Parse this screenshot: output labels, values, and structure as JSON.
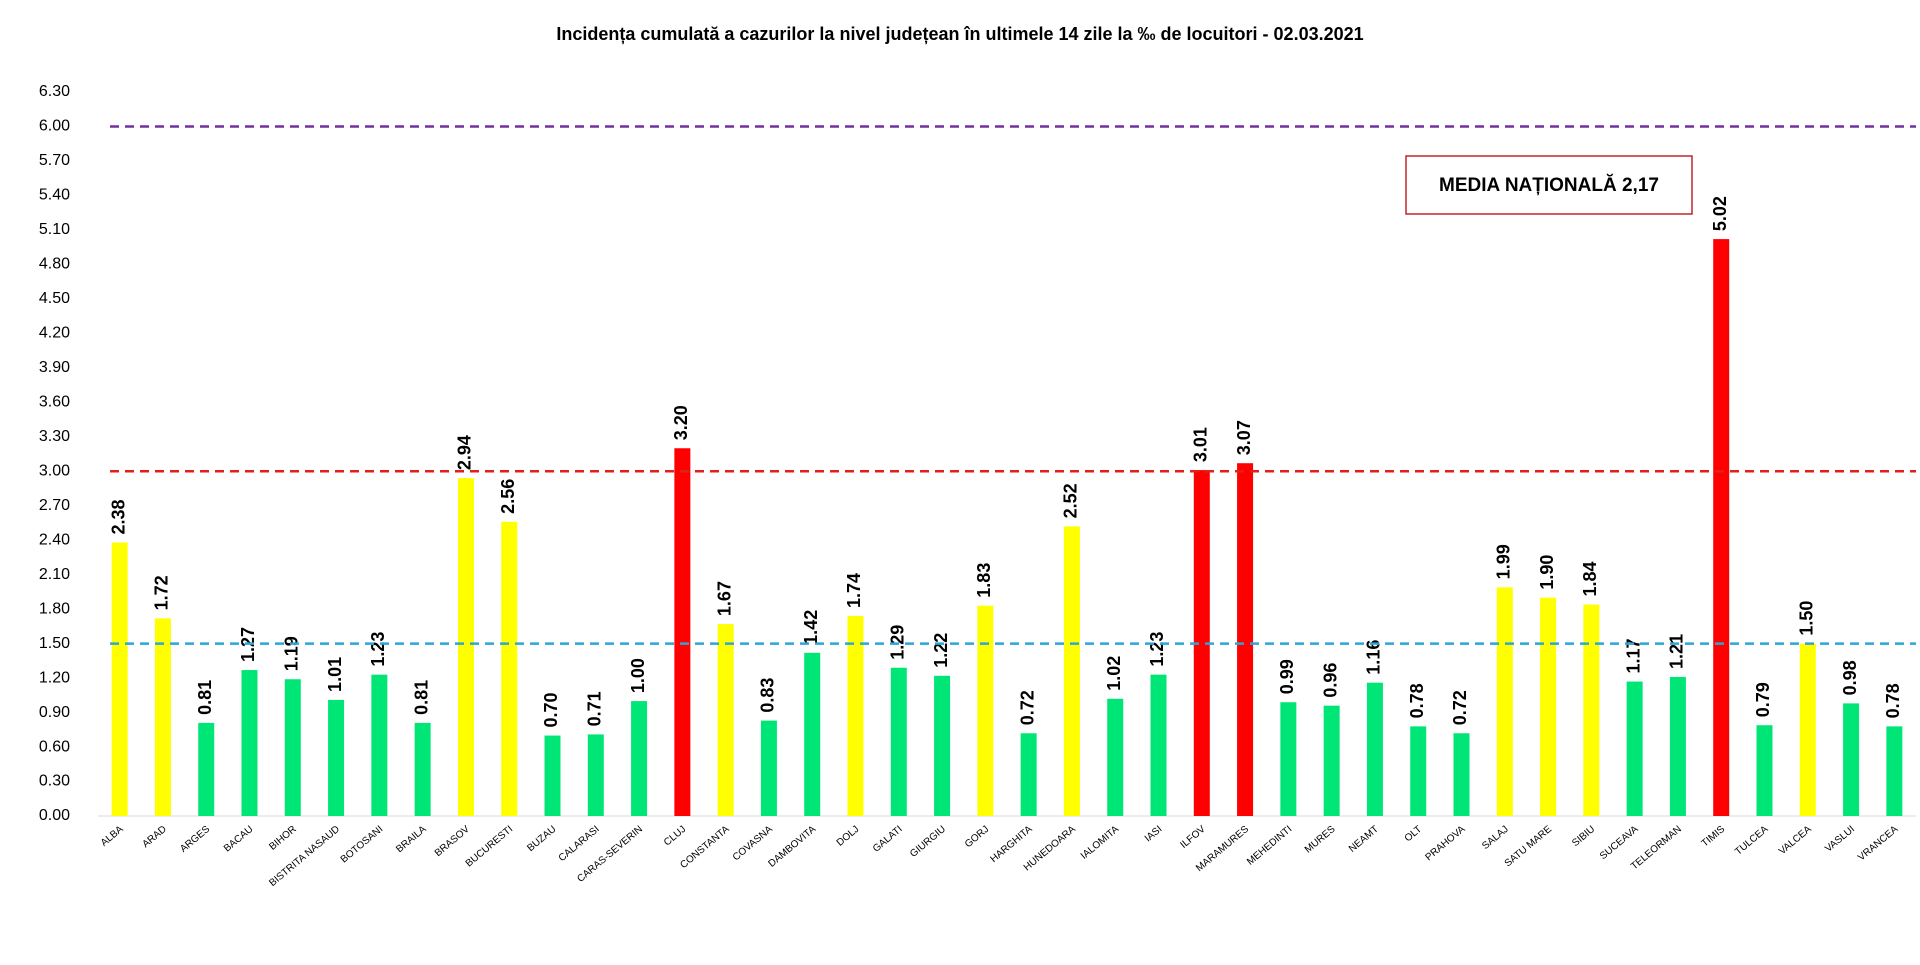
{
  "chart_data": {
    "type": "bar",
    "title": "Incidența cumulată a cazurilor la nivel județean în ultimele 14 zile la ‰ de locuitori - 02.03.2021",
    "annotation": "MEDIA NAȚIONALĂ 2,17",
    "categories": [
      "ALBA",
      "ARAD",
      "ARGES",
      "BACAU",
      "BIHOR",
      "BISTRITA NASAUD",
      "BOTOSANI",
      "BRAILA",
      "BRASOV",
      "BUCURESTI",
      "BUZAU",
      "CALARASI",
      "CARAS-SEVERIN",
      "CLUJ",
      "CONSTANTA",
      "COVASNA",
      "DAMBOVITA",
      "DOLJ",
      "GALATI",
      "GIURGIU",
      "GORJ",
      "HARGHITA",
      "HUNEDOARA",
      "IALOMITA",
      "IASI",
      "ILFOV",
      "MARAMURES",
      "MEHEDINTI",
      "MURES",
      "NEAMT",
      "OLT",
      "PRAHOVA",
      "SALAJ",
      "SATU MARE",
      "SIBIU",
      "SUCEAVA",
      "TELEORMAN",
      "TIMIS",
      "TULCEA",
      "VALCEA",
      "VASLUI",
      "VRANCEA"
    ],
    "values": [
      2.38,
      1.72,
      0.81,
      1.27,
      1.19,
      1.01,
      1.23,
      0.81,
      2.94,
      2.56,
      0.7,
      0.71,
      1.0,
      3.2,
      1.67,
      0.83,
      1.42,
      1.74,
      1.29,
      1.22,
      1.83,
      0.72,
      2.52,
      1.02,
      1.23,
      3.01,
      3.07,
      0.99,
      0.96,
      1.16,
      0.78,
      0.72,
      1.99,
      1.9,
      1.84,
      1.17,
      1.21,
      5.02,
      0.79,
      1.5,
      0.98,
      0.78
    ],
    "value_labels": [
      "2.38",
      "1.72",
      "0.81",
      "1.27",
      "1.19",
      "1.01",
      "1.23",
      "0.81",
      "2.94",
      "2.56",
      "0.70",
      "0.71",
      "1.00",
      "3.20",
      "1.67",
      "0.83",
      "1.42",
      "1.74",
      "1.29",
      "1.22",
      "1.83",
      "0.72",
      "2.52",
      "1.02",
      "1.23",
      "3.01",
      "3.07",
      "0.99",
      "0.96",
      "1.16",
      "0.78",
      "0.72",
      "1.99",
      "1.90",
      "1.84",
      "1.17",
      "1.21",
      "5.02",
      "0.79",
      "1.50",
      "0.98",
      "0.78"
    ],
    "colors": [
      "#ffff00",
      "#ffff00",
      "#00e676",
      "#00e676",
      "#00e676",
      "#00e676",
      "#00e676",
      "#00e676",
      "#ffff00",
      "#ffff00",
      "#00e676",
      "#00e676",
      "#00e676",
      "#ff0000",
      "#ffff00",
      "#00e676",
      "#00e676",
      "#ffff00",
      "#00e676",
      "#00e676",
      "#ffff00",
      "#00e676",
      "#ffff00",
      "#00e676",
      "#00e676",
      "#ff0000",
      "#ff0000",
      "#00e676",
      "#00e676",
      "#00e676",
      "#00e676",
      "#00e676",
      "#ffff00",
      "#ffff00",
      "#ffff00",
      "#00e676",
      "#00e676",
      "#ff0000",
      "#00e676",
      "#ffff00",
      "#00e676",
      "#00e676"
    ],
    "ylim": [
      0,
      6.3
    ],
    "yticks": [
      {
        "value": 0,
        "label": "0.00"
      },
      {
        "value": 0.3,
        "label": "0.30"
      },
      {
        "value": 0.6,
        "label": "0.60"
      },
      {
        "value": 0.9,
        "label": "0.90"
      },
      {
        "value": 1.2,
        "label": "1.20"
      },
      {
        "value": 1.5,
        "label": "1.50"
      },
      {
        "value": 1.8,
        "label": "1.80"
      },
      {
        "value": 2.1,
        "label": "2.10"
      },
      {
        "value": 2.4,
        "label": "2.40"
      },
      {
        "value": 2.7,
        "label": "2.70"
      },
      {
        "value": 3,
        "label": "3.00"
      },
      {
        "value": 3.3,
        "label": "3.30"
      },
      {
        "value": 3.6,
        "label": "3.60"
      },
      {
        "value": 3.9,
        "label": "3.90"
      },
      {
        "value": 4.2,
        "label": "4.20"
      },
      {
        "value": 4.5,
        "label": "4.50"
      },
      {
        "value": 4.8,
        "label": "4.80"
      },
      {
        "value": 5.1,
        "label": "5.10"
      },
      {
        "value": 5.4,
        "label": "5.40"
      },
      {
        "value": 5.7,
        "label": "5.70"
      },
      {
        "value": 6,
        "label": "6.00"
      },
      {
        "value": 6.3,
        "label": "6.30"
      }
    ],
    "reference_lines": [
      {
        "value": 6,
        "color": "#7030a0"
      },
      {
        "value": 3,
        "color": "#e0201c"
      },
      {
        "value": 1.5,
        "color": "#2aa7d6"
      }
    ],
    "grid": false
  }
}
